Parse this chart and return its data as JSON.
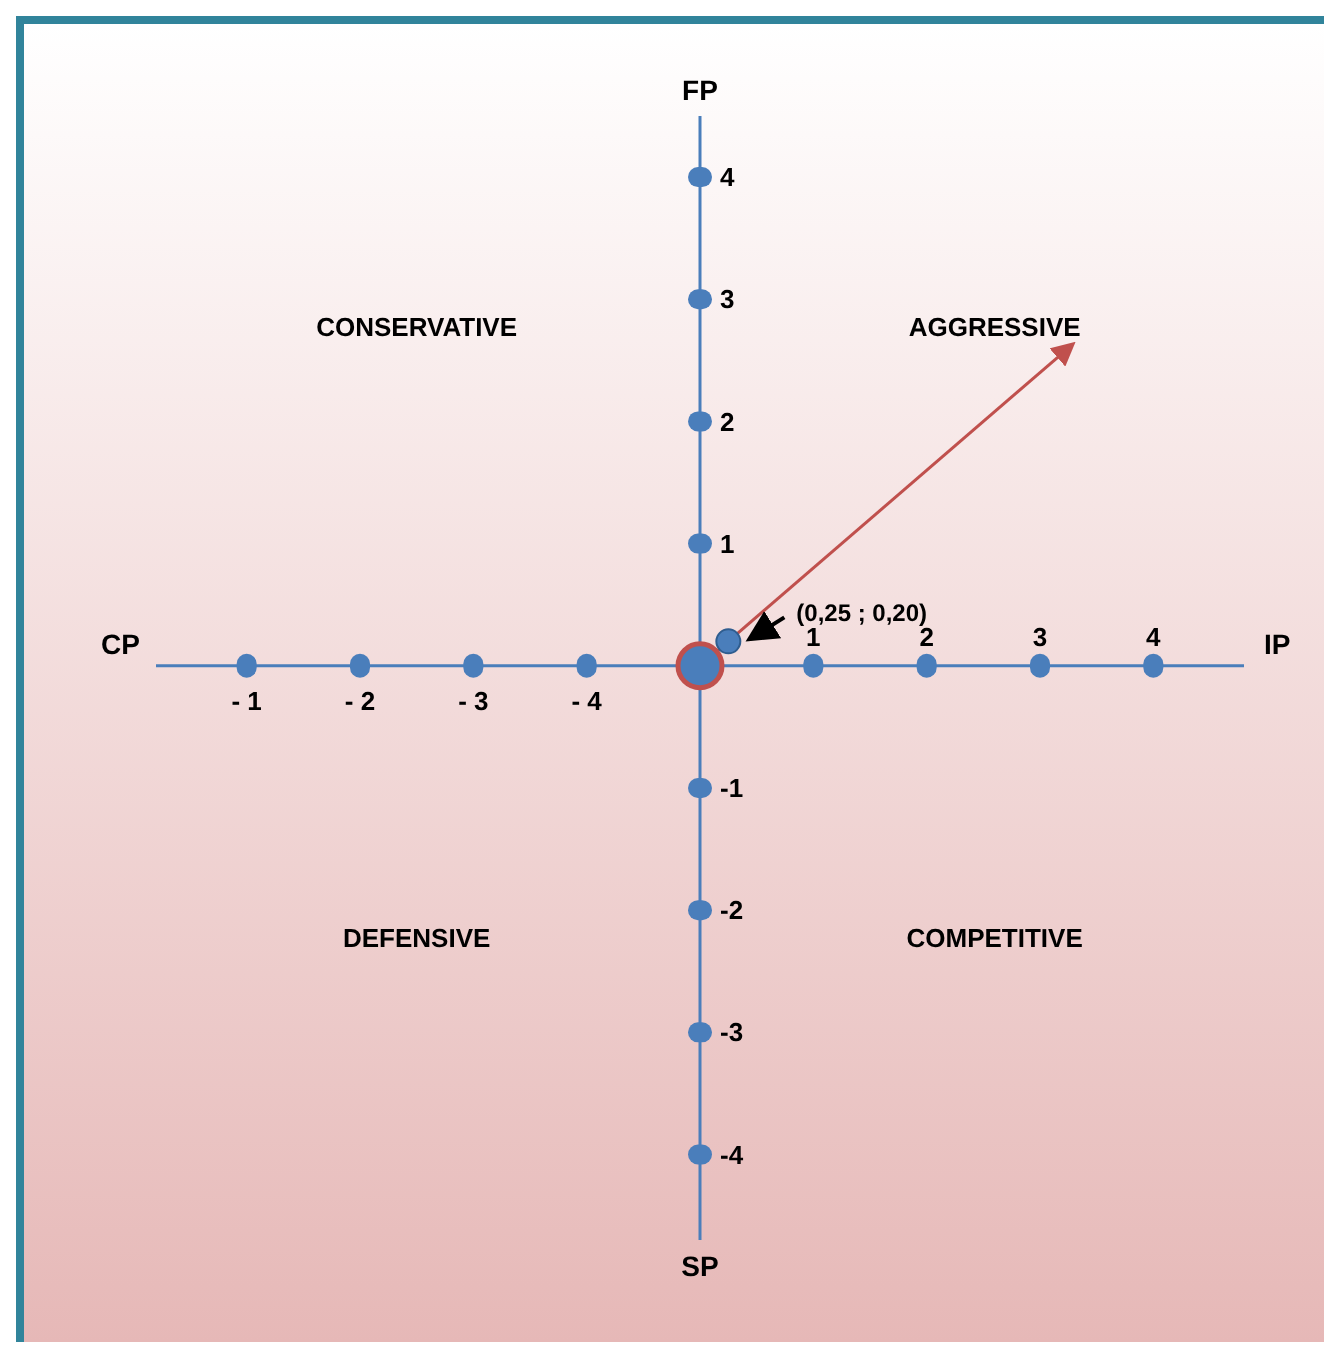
{
  "chart_data": {
    "type": "scatter",
    "xlabel": "IP",
    "ylabel": "FP",
    "annotations": [
      "CONSERVATIVE",
      "AGGRESSIVE",
      "DEFENSIVE",
      "COMPETITIVE",
      "CP",
      "SP",
      "- 1",
      "- 2",
      "- 3",
      "- 4",
      {
        "text": "(0,25 ; 0,20)",
        "x": 0.25,
        "y": 0.2
      }
    ],
    "xlim": [
      -4.8,
      4.8
    ],
    "ylim": [
      -4.7,
      4.5
    ],
    "xticks": [
      {
        "value": -4,
        "label": null
      },
      {
        "value": -3,
        "label": null
      },
      {
        "value": -2,
        "label": null
      },
      {
        "value": -1,
        "label": null
      },
      1,
      2,
      3,
      4
    ],
    "yticks": [
      -4,
      -3,
      -2,
      -1,
      1,
      2,
      3,
      4
    ],
    "series": [
      {
        "x": [
          0.25
        ],
        "values": [
          0.2
        ],
        "color": "#4a7ebb"
      }
    ],
    "marker": "circle",
    "grid": false
  }
}
